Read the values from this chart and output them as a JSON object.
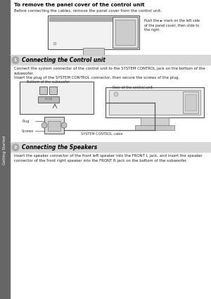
{
  "page_bg": "#ffffff",
  "sidebar_color": "#666666",
  "sidebar_text": "Getting Started",
  "section1_title": "To remove the panel cover of the control unit",
  "section1_body": "Before connecting the cables, remove the panel cover from the control unit.",
  "section1_note": "Push the ► mark on the left side\nof the panel cover, then slide to\nthe right.",
  "connecting_control_title": "①  Connecting the Control unit",
  "connecting_control_body1": "Connect the system connector of the control unit to the SYSTEM CONTROL jack on the bottom of the",
  "connecting_control_body2": "subwoofer.",
  "connecting_control_body3": "Insert the plug of the SYSTEM CONTROL connector, then secure the screws of the plug.",
  "label_bottom_sub": "Bottom of the subwoofer",
  "label_rear_control": "Rear of the control unit",
  "label_plug": "Plug",
  "label_screws": "Screws",
  "label_cable": "SYSTEM CONTROL cable",
  "connecting_speakers_title": "②  Connecting the Speakers",
  "connecting_speakers_body1": "Insert the speaker connector of the front left speaker into the FRONT L jack, and insert the speaker",
  "connecting_speakers_body2": "connector of the front right speaker into the FRONT R jack on the bottom of the subwoofer.",
  "header_color": "#d8d8d8",
  "sep_color": "#cccccc",
  "body_text_color": "#222222",
  "diagram_edge": "#555555",
  "diagram_face": "#eeeeee",
  "diagram_inner": "#e0e0e0"
}
